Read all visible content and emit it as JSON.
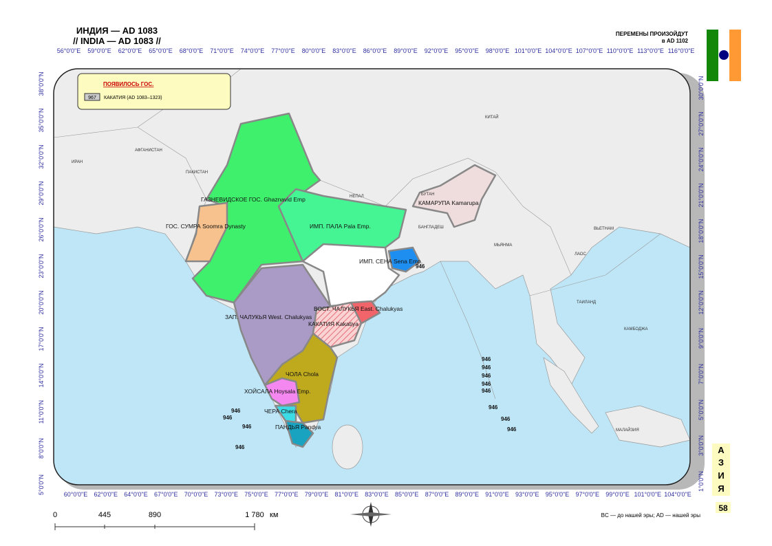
{
  "header": {
    "title_ru": "ИНДИЯ — AD 1083",
    "title_en": "// INDIA — AD 1083 //",
    "changes": "ПЕРЕМЕНЫ ПРОИЗОЙДУТ",
    "changes_date": "в AD 1102"
  },
  "axes": {
    "top": [
      "56°0'0\"E",
      "59°0'0\"E",
      "62°0'0\"E",
      "65°0'0\"E",
      "68°0'0\"E",
      "71°0'0\"E",
      "74°0'0\"E",
      "77°0'0\"E",
      "80°0'0\"E",
      "83°0'0\"E",
      "86°0'0\"E",
      "89°0'0\"E",
      "92°0'0\"E",
      "95°0'0\"E",
      "98°0'0\"E",
      "101°0'0\"E",
      "104°0'0\"E",
      "107°0'0\"E",
      "110°0'0\"E",
      "113°0'0\"E",
      "116°0'0\"E"
    ],
    "bottom": [
      "60°0'0\"E",
      "62°0'0\"E",
      "64°0'0\"E",
      "67°0'0\"E",
      "70°0'0\"E",
      "73°0'0\"E",
      "75°0'0\"E",
      "77°0'0\"E",
      "79°0'0\"E",
      "81°0'0\"E",
      "83°0'0\"E",
      "85°0'0\"E",
      "87°0'0\"E",
      "89°0'0\"E",
      "91°0'0\"E",
      "93°0'0\"E",
      "95°0'0\"E",
      "97°0'0\"E",
      "99°0'0\"E",
      "101°0'0\"E",
      "104°0'0\"E"
    ],
    "left": [
      "38°0'0\"N",
      "35°0'0\"N",
      "32°0'0\"N",
      "29°0'0\"N",
      "26°0'0\"N",
      "23°0'0\"N",
      "20°0'0\"N",
      "17°0'0\"N",
      "14°0'0\"N",
      "11°0'0\"N",
      "8°0'0\"N",
      "5°0'0\"N"
    ],
    "right": [
      "30°0'0\"N",
      "27°0'0\"N",
      "24°0'0\"N",
      "21°0'0\"N",
      "18°0'0\"N",
      "15°0'0\"N",
      "12°0'0\"N",
      "9°0'0\"N",
      "7°0'0\"N",
      "5°0'0\"N",
      "3°0'0\"N",
      "1°0'0\"N"
    ]
  },
  "legend": {
    "title": "ПОЯВИЛОСЬ ГОС.",
    "code": "967",
    "item": "КАКАТИЯ (AD 1083–1323)"
  },
  "countries": [
    "ИРАН",
    "АФГАНИСТАН",
    "ПАКИСТАН",
    "КИТАЙ",
    "НЕПАЛ",
    "БУТАН",
    "БАНГЛАДЕШ",
    "МЬЯНМА",
    "ЛАОС",
    "ВЬЕТНАМ",
    "ТАИЛАНД",
    "КАМБОДЖА",
    "МАЛАЙЗИЯ"
  ],
  "states": [
    "ГАЗНЕВИДСКОЕ ГОС.  Ghaznavid Emp",
    "ГОС. СУМРА  Soomra Dynasty",
    "ИМП. ПАЛА  Pala Emp.",
    "ИМП. СЕНА  Sena Emp.",
    "КАМАРУПА  Kamarupa",
    "ЗАП. ЧАЛУКЬЯ  West. Chalukyas",
    "ВОСТ. ЧАЛУКЬЯ  East. Chalukyas",
    "КАКАТИЯ  Kakatiya",
    "ЧОЛА  Chola",
    "ХОЙСАЛА  Hoysala Emp.",
    "ЧЕРА  Chera",
    "ПАНДЬЯ  Pandya"
  ],
  "islands": [
    "946",
    "946",
    "946",
    "946",
    "946",
    "946",
    "946",
    "946",
    "946",
    "946",
    "946",
    "946",
    "946"
  ],
  "scale": {
    "ticks": [
      "0",
      "445",
      "890",
      "1 780"
    ],
    "unit": "км"
  },
  "footnote": "BC — до нашей эры; AD — нашей эры",
  "side": {
    "letters": [
      "А",
      "З",
      "И",
      "Я"
    ],
    "page": "58"
  }
}
